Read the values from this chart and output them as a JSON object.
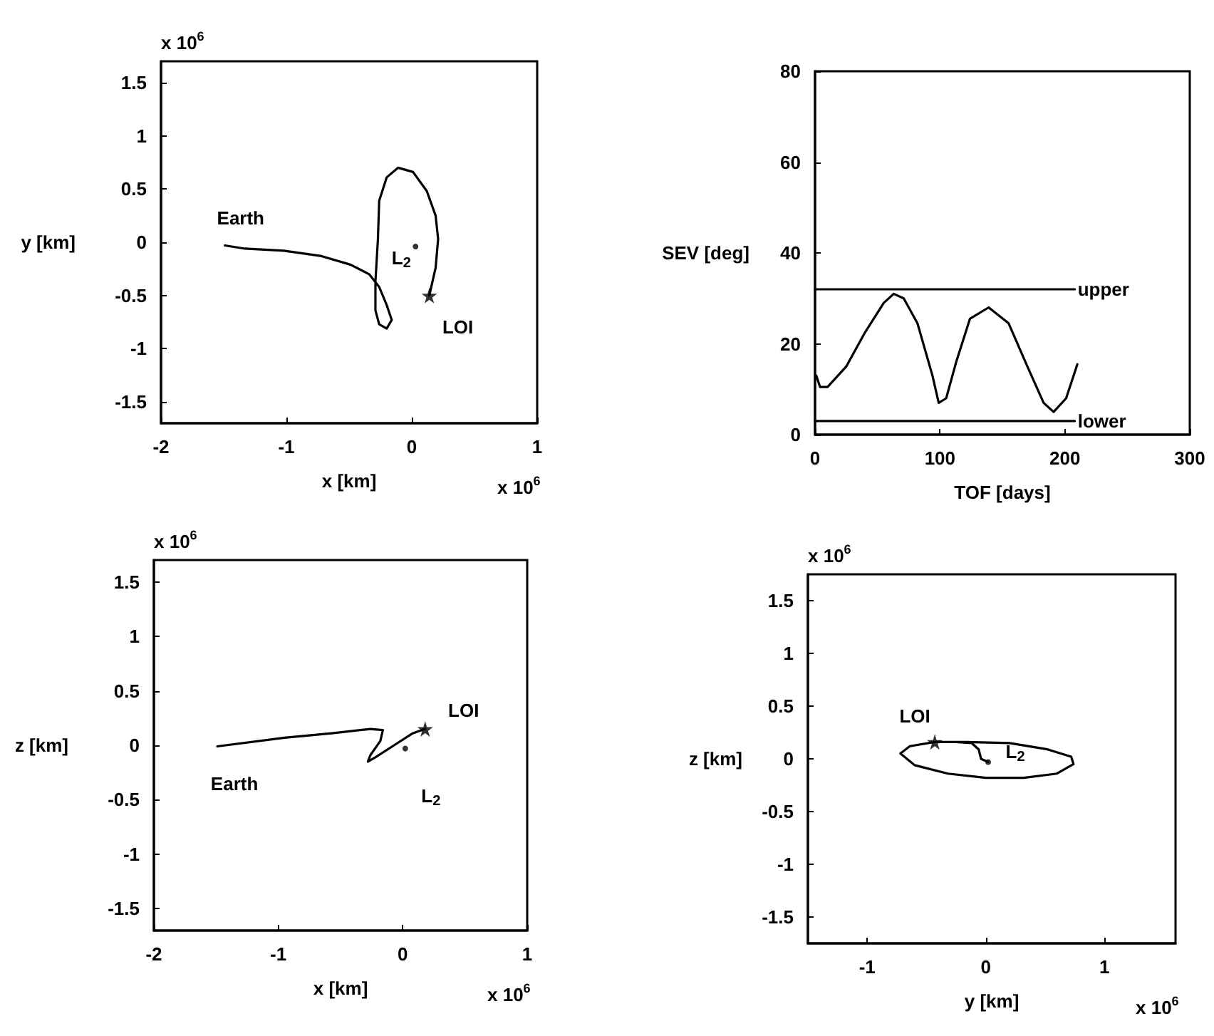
{
  "chart_data": [
    {
      "type": "line",
      "xlabel": "x [km]",
      "ylabel": "y [km]",
      "xlim": [
        -2,
        1
      ],
      "ylim": [
        -1.7,
        1.7
      ],
      "xticks": [
        -2,
        -1,
        0,
        1
      ],
      "yticks": [
        -1.5,
        -1,
        -0.5,
        0,
        0.5,
        1,
        1.5
      ],
      "annotations": [
        "x 10$^{6}$",
        "x 10$^{6}$",
        {
          "text": "Earth",
          "x": -1.49,
          "y": -0.03
        },
        {
          "text": "L$_{2}$",
          "x": 0.03,
          "y": -0.04
        },
        {
          "text": "LOI",
          "x": 0.14,
          "y": -0.5
        }
      ],
      "series": [
        {
          "color": "#000000",
          "x": [
            -1.49,
            -1.33,
            -1.02,
            -0.72,
            -0.49,
            -0.34,
            -0.26,
            -0.2,
            -0.16,
            -0.2,
            -0.26,
            -0.29,
            -0.29,
            -0.27,
            -0.26,
            -0.2,
            -0.11,
            0.01,
            0.12,
            0.19,
            0.21,
            0.19,
            0.14
          ],
          "values": [
            -0.03,
            -0.06,
            -0.08,
            -0.13,
            -0.21,
            -0.3,
            -0.42,
            -0.59,
            -0.73,
            -0.81,
            -0.77,
            -0.64,
            -0.37,
            0.03,
            0.39,
            0.61,
            0.7,
            0.66,
            0.48,
            0.25,
            0.03,
            -0.24,
            -0.5
          ]
        },
        {
          "type": "scatter",
          "marker": "circle",
          "color": "#000000",
          "x": [
            0.03
          ],
          "values": [
            -0.04
          ]
        },
        {
          "type": "scatter",
          "marker": "star",
          "color": "#000000",
          "x": [
            0.14
          ],
          "values": [
            -0.5
          ]
        }
      ]
    },
    {
      "type": "line",
      "xlabel": "TOF [days]",
      "ylabel": "SEV [deg]",
      "xlim": [
        0,
        300
      ],
      "ylim": [
        0,
        80
      ],
      "xticks": [
        0,
        100,
        200,
        300
      ],
      "yticks": [
        0,
        20,
        40,
        60,
        80
      ],
      "series": [
        {
          "color": "#000000",
          "x": [
            1,
            4,
            10,
            25,
            40,
            55,
            63,
            71,
            82,
            94,
            99,
            105,
            113,
            124,
            139,
            155,
            170,
            183,
            191,
            201,
            210
          ],
          "values": [
            13,
            10.5,
            10.5,
            15,
            22.5,
            29,
            31,
            30,
            24.5,
            13,
            7,
            8,
            16,
            25.5,
            28,
            24.5,
            15,
            7,
            5,
            8,
            15.5
          ]
        },
        {
          "name": "upper",
          "color": "#000000",
          "x": [
            0,
            208
          ],
          "values": [
            32,
            32
          ]
        },
        {
          "name": "lower",
          "color": "#000000",
          "x": [
            0,
            208
          ],
          "values": [
            3,
            3
          ]
        }
      ]
    },
    {
      "type": "line",
      "xlabel": "x [km]",
      "ylabel": "z [km]",
      "xlim": [
        -2,
        1
      ],
      "ylim": [
        -1.7,
        1.7
      ],
      "xticks": [
        -2,
        -1,
        0,
        1
      ],
      "yticks": [
        -1.5,
        -1,
        -0.5,
        0,
        0.5,
        1,
        1.5
      ],
      "annotations": [
        "x 10$^{6}$",
        "x 10$^{6}$",
        {
          "text": "Earth",
          "x": -1.49,
          "y": -0.01
        },
        {
          "text": "L$_{2}$",
          "x": 0.02,
          "y": -0.03
        },
        {
          "text": "LOI",
          "x": 0.18,
          "y": 0.15
        }
      ],
      "series": [
        {
          "color": "#000000",
          "x": [
            -1.49,
            -0.95,
            -0.57,
            -0.26,
            -0.16,
            -0.18,
            -0.26,
            -0.28,
            -0.22,
            -0.07,
            0.08,
            0.18
          ],
          "values": [
            -0.01,
            0.07,
            0.11,
            0.15,
            0.14,
            0.04,
            -0.09,
            -0.15,
            -0.11,
            0,
            0.11,
            0.15
          ]
        },
        {
          "type": "scatter",
          "marker": "circle",
          "color": "#000000",
          "x": [
            0.02
          ],
          "values": [
            -0.03
          ]
        },
        {
          "type": "scatter",
          "marker": "star",
          "color": "#000000",
          "x": [
            0.18
          ],
          "values": [
            0.15
          ]
        }
      ]
    },
    {
      "type": "line",
      "xlabel": "y [km]",
      "ylabel": "z [km]",
      "xlim": [
        -1.5,
        1.6
      ],
      "ylim": [
        -1.75,
        1.75
      ],
      "xticks": [
        -1,
        0,
        1
      ],
      "yticks": [
        -1.5,
        -1,
        -0.5,
        0,
        0.5,
        1,
        1.5
      ],
      "annotations": [
        "x 10$^{6}$",
        "x 10$^{6}$",
        {
          "text": "LOI",
          "x": -0.43,
          "y": 0.16
        },
        {
          "text": "L$_{2}$",
          "x": 0.02,
          "y": -0.03
        }
      ],
      "series": [
        {
          "color": "#000000",
          "x": [
            0.02,
            -0.04,
            -0.06,
            -0.12,
            -0.25,
            -0.43,
            -0.64,
            -0.72,
            -0.6,
            -0.32,
            0,
            0.32,
            0.6,
            0.74,
            0.72,
            0.52,
            0.2,
            -0.16,
            -0.43
          ],
          "values": [
            -0.03,
            0,
            0.09,
            0.15,
            0.16,
            0.16,
            0.12,
            0.05,
            -0.06,
            -0.14,
            -0.18,
            -0.18,
            -0.14,
            -0.05,
            0.02,
            0.09,
            0.15,
            0.16,
            0.16
          ]
        },
        {
          "type": "scatter",
          "marker": "circle",
          "color": "#000000",
          "x": [
            0.02
          ],
          "values": [
            -0.03
          ]
        },
        {
          "type": "scatter",
          "marker": "star",
          "color": "#000000",
          "x": [
            -0.43
          ],
          "values": [
            0.16
          ]
        }
      ]
    }
  ]
}
